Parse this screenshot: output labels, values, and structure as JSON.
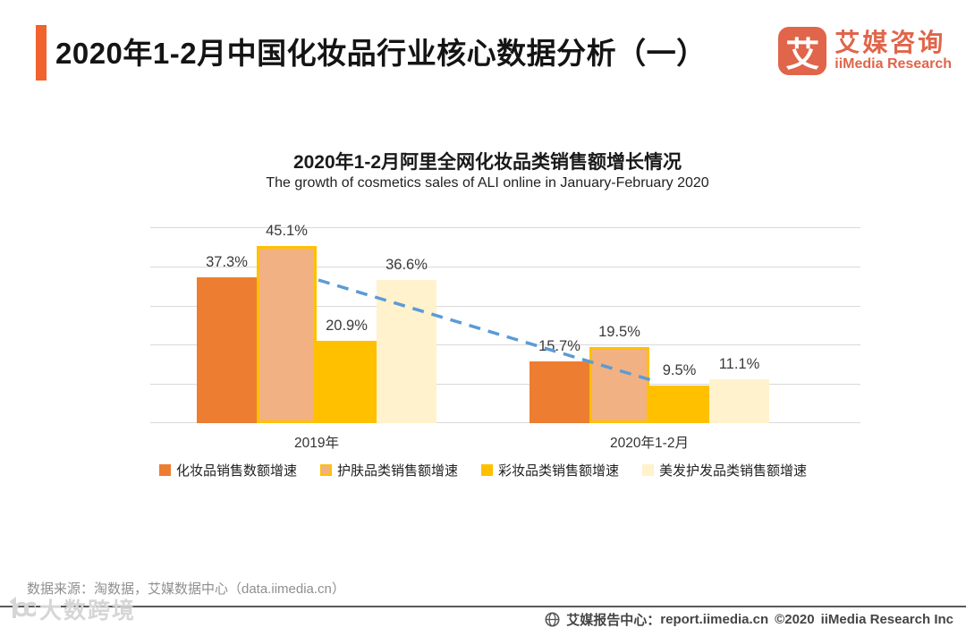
{
  "colors": {
    "accent_orange": "#F0632C",
    "logo_orange": "#E0654A",
    "trend_blue": "#5B9BD5",
    "grid_gray": "#D9D9D9"
  },
  "header": {
    "title": "2020年1-2月中国化妆品行业核心数据分析（一）",
    "logo": {
      "mark_char": "艾",
      "name_cn": "艾媒咨询",
      "name_en": "iiMedia Research"
    }
  },
  "chart_data": {
    "type": "bar",
    "title": "2020年1-2月阿里全网化妆品类销售额增长情况",
    "subtitle": "The growth of cosmetics sales of ALI online in January-February 2020",
    "categories": [
      "2019年",
      "2020年1-2月"
    ],
    "series": [
      {
        "name": "化妆品销售数额增速",
        "color": "#ED7D31",
        "values": [
          37.3,
          15.7
        ]
      },
      {
        "name": "护肤品类销售额增速",
        "color": "#F2B183",
        "border": "#FFC000",
        "values": [
          45.1,
          19.5
        ]
      },
      {
        "name": "彩妆品类销售额增速",
        "color": "#FFC000",
        "values": [
          20.9,
          9.5
        ]
      },
      {
        "name": "美发护发品类销售额增速",
        "color": "#FFF2CC",
        "values": [
          36.6,
          11.1
        ]
      }
    ],
    "value_suffix": "%",
    "ylim": [
      0,
      50
    ],
    "gridline_step": 10,
    "grid": "horizontal",
    "legend_position": "bottom",
    "trendline": {
      "color": "#5B9BD5",
      "style": "dashed",
      "from_pct": 36.5,
      "to_pct": 10.5
    }
  },
  "source_note": "数据来源：淘数据，艾媒数据中心（data.iimedia.cn）",
  "watermark_text": "大数跨境",
  "footer": {
    "report_label": "艾媒报告中心：",
    "report_url": "report.iimedia.cn",
    "copyright": "©2020",
    "company": "iiMedia Research Inc"
  }
}
